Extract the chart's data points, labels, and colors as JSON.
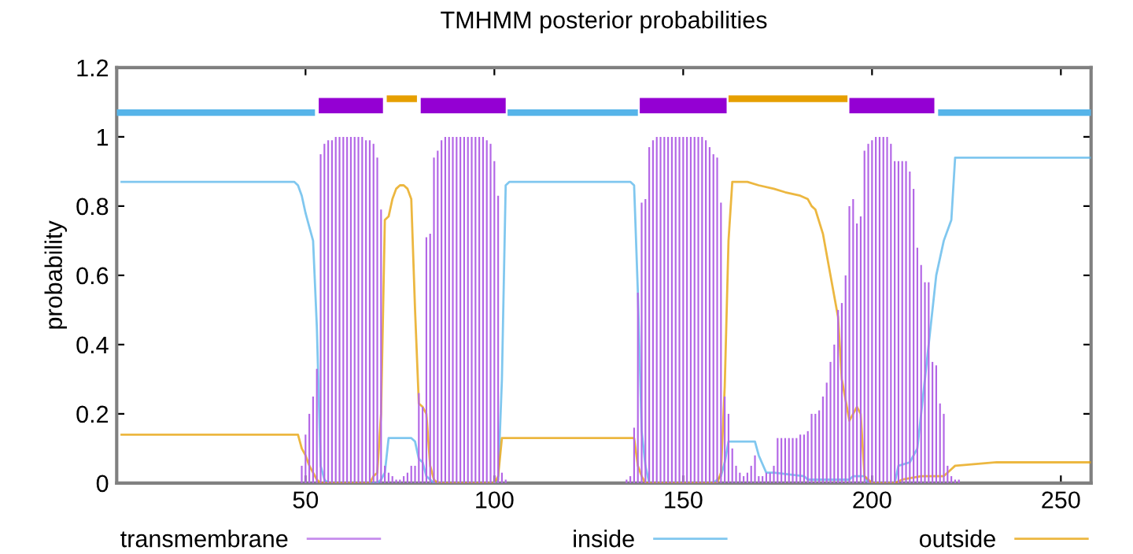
{
  "chart_data": {
    "type": "line",
    "title": "TMHMM posterior probabilities",
    "ylabel": "probability",
    "xlim": [
      0,
      258
    ],
    "ylim": [
      0,
      1.2
    ],
    "xticks": [
      50,
      100,
      150,
      200,
      250
    ],
    "yticks": [
      0,
      0.2,
      0.4,
      0.6,
      0.8,
      1,
      1.2
    ],
    "legend": "bottom",
    "grid": false,
    "marker": "none",
    "line_style": "solid",
    "series": [
      {
        "name": "transmembrane",
        "type": "bar",
        "color": "#b366e6",
        "x": [
          49,
          50,
          51,
          52,
          53,
          54,
          55,
          56,
          57,
          58,
          59,
          60,
          61,
          62,
          63,
          64,
          65,
          66,
          67,
          68,
          69,
          70,
          71,
          72,
          73,
          74,
          75,
          76,
          77,
          78,
          79,
          80,
          81,
          82,
          83,
          84,
          85,
          86,
          87,
          88,
          89,
          90,
          91,
          92,
          93,
          94,
          95,
          96,
          97,
          98,
          99,
          100,
          101,
          102,
          103,
          135,
          136,
          137,
          138,
          139,
          140,
          141,
          142,
          143,
          144,
          145,
          146,
          147,
          148,
          149,
          150,
          151,
          152,
          153,
          154,
          155,
          156,
          157,
          158,
          159,
          160,
          161,
          162,
          163,
          164,
          165,
          166,
          167,
          168,
          169,
          170,
          171,
          172,
          173,
          174,
          175,
          176,
          177,
          178,
          179,
          180,
          181,
          182,
          183,
          184,
          185,
          186,
          187,
          188,
          189,
          190,
          191,
          192,
          193,
          194,
          195,
          196,
          197,
          198,
          199,
          200,
          201,
          202,
          203,
          204,
          205,
          206,
          207,
          208,
          209,
          210,
          211,
          212,
          213,
          214,
          215,
          216,
          217,
          218,
          219,
          220,
          221,
          222,
          223
        ],
        "values": [
          0.05,
          0.14,
          0.2,
          0.25,
          0.33,
          0.95,
          0.98,
          0.99,
          0.99,
          1,
          1,
          1,
          1,
          1,
          1,
          1,
          1,
          0.99,
          0.99,
          0.98,
          0.94,
          0.79,
          0.05,
          0.03,
          0.02,
          0.01,
          0.01,
          0.02,
          0.03,
          0.05,
          0.05,
          0.26,
          0.22,
          0.71,
          0.72,
          0.94,
          0.96,
          0.99,
          1,
          1,
          1,
          1,
          1,
          1,
          1,
          1,
          1,
          1,
          1,
          0.99,
          0.98,
          0.93,
          0.83,
          0.03,
          0.01,
          0.01,
          0.02,
          0.16,
          0.55,
          0.81,
          0.82,
          0.97,
          0.99,
          1,
          1,
          1,
          1,
          1,
          1,
          1,
          1,
          1,
          1,
          1,
          1,
          1,
          0.99,
          0.97,
          0.95,
          0.94,
          0.81,
          0.25,
          0.2,
          0.1,
          0.05,
          0.03,
          0.02,
          0.03,
          0.05,
          0.08,
          0.02,
          0.02,
          0.03,
          0.03,
          0.05,
          0.13,
          0.13,
          0.13,
          0.13,
          0.13,
          0.13,
          0.14,
          0.14,
          0.15,
          0.2,
          0.2,
          0.21,
          0.25,
          0.29,
          0.35,
          0.4,
          0.5,
          0.52,
          0.6,
          0.8,
          0.82,
          0.75,
          0.77,
          0.96,
          0.98,
          0.99,
          1,
          1,
          1,
          1,
          0.98,
          0.93,
          0.93,
          0.93,
          0.93,
          0.9,
          0.85,
          0.68,
          0.63,
          0.58,
          0.58,
          0.35,
          0.34,
          0.23,
          0.2,
          0.05,
          0.02,
          0.01,
          0.01
        ]
      },
      {
        "name": "inside",
        "color": "#56b4e9",
        "x": [
          1,
          47,
          48,
          49,
          50,
          51,
          52,
          53,
          54,
          55,
          56,
          69,
          70,
          71,
          72,
          78,
          79,
          80,
          81,
          82,
          83,
          84,
          100,
          101,
          102,
          103,
          104,
          136,
          137,
          138,
          139,
          140,
          141,
          158,
          159,
          160,
          161,
          162,
          169,
          170,
          172,
          174,
          182,
          183,
          194,
          195,
          198,
          199,
          206,
          207,
          210,
          212,
          213,
          214,
          216,
          217,
          219,
          221,
          222,
          258
        ],
        "values": [
          0.87,
          0.87,
          0.86,
          0.83,
          0.78,
          0.74,
          0.7,
          0.45,
          0.05,
          0.01,
          0,
          0,
          0.01,
          0.03,
          0.13,
          0.13,
          0.12,
          0.07,
          0.06,
          0.02,
          0.01,
          0,
          0,
          0.01,
          0.3,
          0.86,
          0.87,
          0.87,
          0.86,
          0.55,
          0.15,
          0.05,
          0,
          0,
          0.01,
          0.02,
          0.06,
          0.12,
          0.12,
          0.08,
          0.03,
          0.03,
          0.02,
          0.01,
          0.01,
          0.02,
          0.02,
          0,
          0,
          0.05,
          0.06,
          0.1,
          0.2,
          0.3,
          0.5,
          0.6,
          0.7,
          0.76,
          0.94,
          0.94
        ]
      },
      {
        "name": "outside",
        "color": "#e69f00",
        "x": [
          1,
          48,
          49,
          50,
          51,
          52,
          53,
          54,
          67,
          68,
          69,
          70,
          71,
          72,
          73,
          74,
          75,
          76,
          77,
          78,
          79,
          80,
          81,
          82,
          83,
          84,
          85,
          100,
          101,
          102,
          137,
          138,
          139,
          140,
          159,
          160,
          161,
          162,
          163,
          167,
          170,
          174,
          177,
          181,
          183,
          184,
          185,
          187,
          189,
          191,
          192,
          194,
          196,
          197,
          198,
          200,
          206,
          208,
          213,
          219,
          221,
          222,
          233,
          258
        ],
        "values": [
          0.14,
          0.14,
          0.1,
          0.08,
          0.05,
          0.03,
          0.01,
          0,
          0,
          0.02,
          0.03,
          0.2,
          0.76,
          0.77,
          0.82,
          0.85,
          0.86,
          0.86,
          0.85,
          0.82,
          0.5,
          0.23,
          0.22,
          0.2,
          0.05,
          0.01,
          0,
          0,
          0.02,
          0.13,
          0.13,
          0.05,
          0.02,
          0,
          0,
          0.03,
          0.28,
          0.7,
          0.87,
          0.87,
          0.86,
          0.85,
          0.84,
          0.83,
          0.82,
          0.8,
          0.79,
          0.72,
          0.6,
          0.48,
          0.3,
          0.18,
          0.22,
          0.2,
          0.02,
          0,
          0,
          0.01,
          0.02,
          0.02,
          0.04,
          0.05,
          0.06,
          0.06
        ]
      },
      {
        "color": "#56b4e9",
        "x": [
          0,
          52.5,
          78,
          103.5,
          138,
          177,
          217.5,
          258
        ],
        "values": [
          1.07,
          1.07,
          null,
          1.07,
          1.07,
          null,
          1.07,
          1.07
        ]
      },
      {
        "color": "#e69f00",
        "x": [
          71.5,
          79.5,
          120,
          162,
          193.5
        ],
        "values": [
          1.11,
          1.11,
          null,
          1.11,
          1.11
        ]
      },
      {
        "color": "#9400d3",
        "x": [
          53.5,
          70.5,
          75,
          80.5,
          103,
          120,
          138.5,
          161.5,
          178,
          194,
          216.5
        ],
        "values": [
          1.09,
          1.09,
          null,
          1.09,
          1.09,
          null,
          1.09,
          1.09,
          null,
          1.09,
          1.09
        ]
      }
    ]
  }
}
